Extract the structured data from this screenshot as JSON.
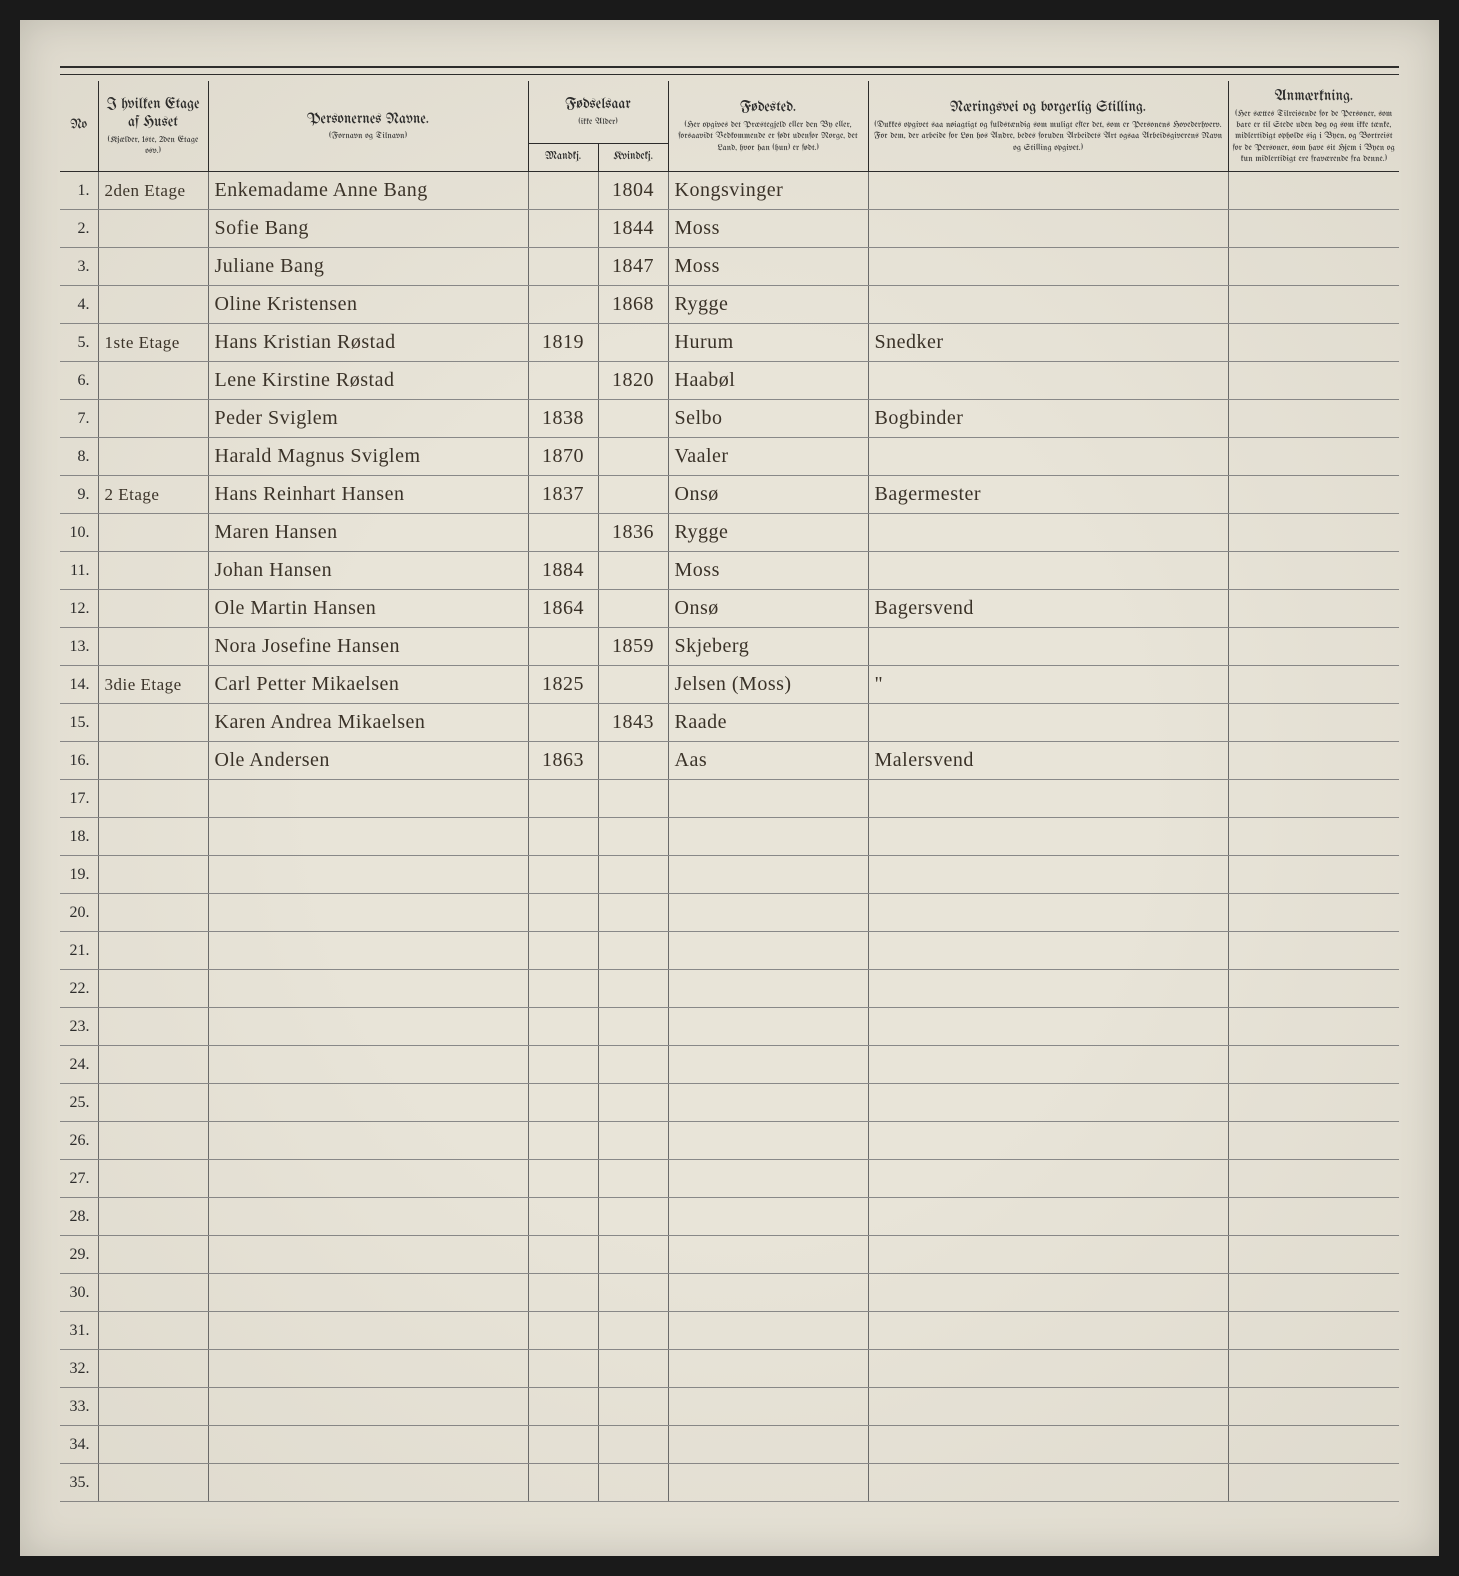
{
  "page": {
    "background_color": "#e8e4d8",
    "rule_color": "#2a2a2a",
    "grid_color": "#888888",
    "ink_color": "#3a3228",
    "print_color": "#2a2a2a"
  },
  "headers": {
    "no": "No",
    "etage_main": "I hvilken Etage af Huset",
    "etage_sub": "(Kjælder, 1ste, 2den Etage osv.)",
    "name_main": "Personernes Navne.",
    "name_sub": "(Fornavn og Tilnavn)",
    "birthyear_main": "Fødselsaar",
    "birthyear_sub": "(ikke Alder)",
    "birthyear_m": "Mandkj.",
    "birthyear_k": "Kvindekj.",
    "birthplace_main": "Fødested.",
    "birthplace_sub": "(Her opgives det Præstegjeld eller den By eller, forsaavidt Vedkommende er født udenfor Norge, det Land, hvor han (hun) er født.)",
    "occupation_main": "Næringsvei og borgerlig Stilling.",
    "occupation_sub": "(Dukkes opgivet saa nøiagtigt og fuldstændig som muligt efter det, som er Personens Hovederhverv. For dem, der arbeide for Løn hos Andre, bedes foruden Arbeidets Art ogsaa Arbeidsgiverens Navn og Stilling opgivet.)",
    "note_main": "Anmærkning.",
    "note_sub": "(Her sættes Tilreisende for de Personer, som bare er til Stede uden dog og som ikke tænke, midlertidigt opholde sig i Byen, og Bortreist for de Personer, som have sit Hjem i Byen og kun midlertidigt ere fraværende fra denne.)"
  },
  "rows": [
    {
      "no": "1.",
      "etage": "2den Etage",
      "name": "Enkemadame Anne Bang",
      "year_m": "",
      "year_k": "1804",
      "place": "Kongsvinger",
      "occ": "",
      "note": ""
    },
    {
      "no": "2.",
      "etage": "",
      "name": "Sofie Bang",
      "year_m": "",
      "year_k": "1844",
      "place": "Moss",
      "occ": "",
      "note": ""
    },
    {
      "no": "3.",
      "etage": "",
      "name": "Juliane Bang",
      "year_m": "",
      "year_k": "1847",
      "place": "Moss",
      "occ": "",
      "note": ""
    },
    {
      "no": "4.",
      "etage": "",
      "name": "Oline Kristensen",
      "year_m": "",
      "year_k": "1868",
      "place": "Rygge",
      "occ": "",
      "note": ""
    },
    {
      "no": "5.",
      "etage": "1ste Etage",
      "name": "Hans Kristian Røstad",
      "year_m": "1819",
      "year_k": "",
      "place": "Hurum",
      "occ": "Snedker",
      "note": ""
    },
    {
      "no": "6.",
      "etage": "",
      "name": "Lene Kirstine Røstad",
      "year_m": "",
      "year_k": "1820",
      "place": "Haabøl",
      "occ": "",
      "note": ""
    },
    {
      "no": "7.",
      "etage": "",
      "name": "Peder Sviglem",
      "year_m": "1838",
      "year_k": "",
      "place": "Selbo",
      "occ": "Bogbinder",
      "note": ""
    },
    {
      "no": "8.",
      "etage": "",
      "name": "Harald Magnus Sviglem",
      "year_m": "1870",
      "year_k": "",
      "place": "Vaaler",
      "occ": "",
      "note": ""
    },
    {
      "no": "9.",
      "etage": "2 Etage",
      "name": "Hans Reinhart Hansen",
      "year_m": "1837",
      "year_k": "",
      "place": "Onsø",
      "occ": "Bagermester",
      "note": ""
    },
    {
      "no": "10.",
      "etage": "",
      "name": "Maren Hansen",
      "year_m": "",
      "year_k": "1836",
      "place": "Rygge",
      "occ": "",
      "note": ""
    },
    {
      "no": "11.",
      "etage": "",
      "name": "Johan Hansen",
      "year_m": "1884",
      "year_k": "",
      "place": "Moss",
      "occ": "",
      "note": ""
    },
    {
      "no": "12.",
      "etage": "",
      "name": "Ole Martin Hansen",
      "year_m": "1864",
      "year_k": "",
      "place": "Onsø",
      "occ": "Bagersvend",
      "note": ""
    },
    {
      "no": "13.",
      "etage": "",
      "name": "Nora Josefine Hansen",
      "year_m": "",
      "year_k": "1859",
      "place": "Skjeberg",
      "occ": "",
      "note": ""
    },
    {
      "no": "14.",
      "etage": "3die Etage",
      "name": "Carl Petter Mikaelsen",
      "year_m": "1825",
      "year_k": "",
      "place": "Jelsen (Moss)",
      "occ": "\"",
      "note": ""
    },
    {
      "no": "15.",
      "etage": "",
      "name": "Karen Andrea Mikaelsen",
      "year_m": "",
      "year_k": "1843",
      "place": "Raade",
      "occ": "",
      "note": ""
    },
    {
      "no": "16.",
      "etage": "",
      "name": "Ole Andersen",
      "year_m": "1863",
      "year_k": "",
      "place": "Aas",
      "occ": "Malersvend",
      "note": ""
    },
    {
      "no": "17.",
      "etage": "",
      "name": "",
      "year_m": "",
      "year_k": "",
      "place": "",
      "occ": "",
      "note": ""
    },
    {
      "no": "18.",
      "etage": "",
      "name": "",
      "year_m": "",
      "year_k": "",
      "place": "",
      "occ": "",
      "note": ""
    },
    {
      "no": "19.",
      "etage": "",
      "name": "",
      "year_m": "",
      "year_k": "",
      "place": "",
      "occ": "",
      "note": ""
    },
    {
      "no": "20.",
      "etage": "",
      "name": "",
      "year_m": "",
      "year_k": "",
      "place": "",
      "occ": "",
      "note": ""
    },
    {
      "no": "21.",
      "etage": "",
      "name": "",
      "year_m": "",
      "year_k": "",
      "place": "",
      "occ": "",
      "note": ""
    },
    {
      "no": "22.",
      "etage": "",
      "name": "",
      "year_m": "",
      "year_k": "",
      "place": "",
      "occ": "",
      "note": ""
    },
    {
      "no": "23.",
      "etage": "",
      "name": "",
      "year_m": "",
      "year_k": "",
      "place": "",
      "occ": "",
      "note": ""
    },
    {
      "no": "24.",
      "etage": "",
      "name": "",
      "year_m": "",
      "year_k": "",
      "place": "",
      "occ": "",
      "note": ""
    },
    {
      "no": "25.",
      "etage": "",
      "name": "",
      "year_m": "",
      "year_k": "",
      "place": "",
      "occ": "",
      "note": ""
    },
    {
      "no": "26.",
      "etage": "",
      "name": "",
      "year_m": "",
      "year_k": "",
      "place": "",
      "occ": "",
      "note": ""
    },
    {
      "no": "27.",
      "etage": "",
      "name": "",
      "year_m": "",
      "year_k": "",
      "place": "",
      "occ": "",
      "note": ""
    },
    {
      "no": "28.",
      "etage": "",
      "name": "",
      "year_m": "",
      "year_k": "",
      "place": "",
      "occ": "",
      "note": ""
    },
    {
      "no": "29.",
      "etage": "",
      "name": "",
      "year_m": "",
      "year_k": "",
      "place": "",
      "occ": "",
      "note": ""
    },
    {
      "no": "30.",
      "etage": "",
      "name": "",
      "year_m": "",
      "year_k": "",
      "place": "",
      "occ": "",
      "note": ""
    },
    {
      "no": "31.",
      "etage": "",
      "name": "",
      "year_m": "",
      "year_k": "",
      "place": "",
      "occ": "",
      "note": ""
    },
    {
      "no": "32.",
      "etage": "",
      "name": "",
      "year_m": "",
      "year_k": "",
      "place": "",
      "occ": "",
      "note": ""
    },
    {
      "no": "33.",
      "etage": "",
      "name": "",
      "year_m": "",
      "year_k": "",
      "place": "",
      "occ": "",
      "note": ""
    },
    {
      "no": "34.",
      "etage": "",
      "name": "",
      "year_m": "",
      "year_k": "",
      "place": "",
      "occ": "",
      "note": ""
    },
    {
      "no": "35.",
      "etage": "",
      "name": "",
      "year_m": "",
      "year_k": "",
      "place": "",
      "occ": "",
      "note": ""
    }
  ]
}
